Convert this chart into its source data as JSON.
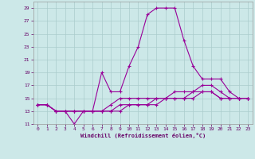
{
  "xlabel": "Windchill (Refroidissement éolien,°C)",
  "xlim": [
    -0.5,
    23.5
  ],
  "ylim": [
    11,
    30
  ],
  "yticks": [
    11,
    13,
    15,
    17,
    19,
    21,
    23,
    25,
    27,
    29
  ],
  "xticks": [
    0,
    1,
    2,
    3,
    4,
    5,
    6,
    7,
    8,
    9,
    10,
    11,
    12,
    13,
    14,
    15,
    16,
    17,
    18,
    19,
    20,
    21,
    22,
    23
  ],
  "background_color": "#cce8e8",
  "grid_color": "#aacccc",
  "line_color": "#990099",
  "series": [
    [
      14,
      14,
      13,
      13,
      11,
      13,
      13,
      19,
      16,
      16,
      20,
      23,
      28,
      29,
      29,
      29,
      24,
      20,
      18,
      18,
      18,
      16,
      15,
      15
    ],
    [
      14,
      14,
      13,
      13,
      13,
      13,
      13,
      13,
      14,
      15,
      15,
      15,
      15,
      15,
      15,
      16,
      16,
      16,
      17,
      17,
      16,
      15,
      15,
      15
    ],
    [
      14,
      14,
      13,
      13,
      13,
      13,
      13,
      13,
      13,
      14,
      14,
      14,
      14,
      15,
      15,
      15,
      15,
      16,
      16,
      16,
      15,
      15,
      15,
      15
    ],
    [
      14,
      14,
      13,
      13,
      13,
      13,
      13,
      13,
      13,
      13,
      14,
      14,
      14,
      14,
      15,
      15,
      15,
      15,
      16,
      16,
      15,
      15,
      15,
      15
    ]
  ]
}
